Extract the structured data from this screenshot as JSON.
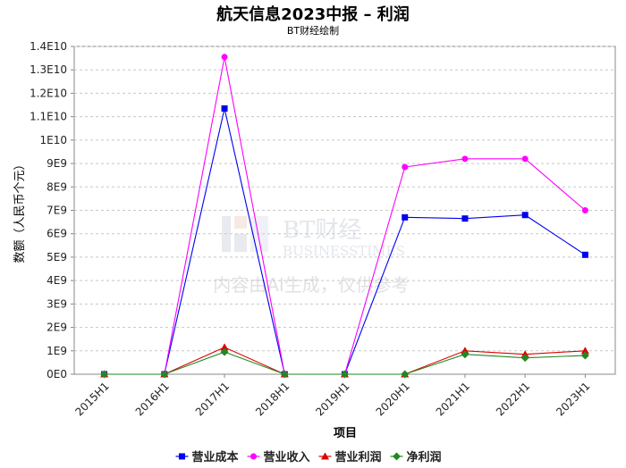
{
  "title": "航天信息2023中报 – 利润",
  "subtitle": "BT财经绘制",
  "watermark": {
    "brand": "BT财经",
    "brand_en": "BUSINESSTIMES",
    "notice": "内容由AI生成，仅供参考"
  },
  "chart_data": {
    "type": "line",
    "xlabel": "项目",
    "ylabel": "数额（人民币个元）",
    "categories": [
      "2015H1",
      "2016H1",
      "2017H1",
      "2018H1",
      "2019H1",
      "2020H1",
      "2021H1",
      "2022H1",
      "2023H1"
    ],
    "ylim": [
      0,
      14000000000
    ],
    "yticks": [
      {
        "value": 0,
        "label": "0E0"
      },
      {
        "value": 1000000000,
        "label": "1E9"
      },
      {
        "value": 2000000000,
        "label": "2E9"
      },
      {
        "value": 3000000000,
        "label": "3E9"
      },
      {
        "value": 4000000000,
        "label": "4E9"
      },
      {
        "value": 5000000000,
        "label": "5E9"
      },
      {
        "value": 6000000000,
        "label": "6E9"
      },
      {
        "value": 7000000000,
        "label": "7E9"
      },
      {
        "value": 8000000000,
        "label": "8E9"
      },
      {
        "value": 9000000000,
        "label": "9E9"
      },
      {
        "value": 10000000000,
        "label": "1E10"
      },
      {
        "value": 11000000000,
        "label": "1.1E10"
      },
      {
        "value": 12000000000,
        "label": "1.2E10"
      },
      {
        "value": 13000000000,
        "label": "1.3E10"
      },
      {
        "value": 14000000000,
        "label": "1.4E10"
      }
    ],
    "grid": true,
    "legend_position": "bottom",
    "series": [
      {
        "name": "营业成本",
        "color": "#0000ee",
        "marker": "square",
        "values": [
          0,
          0,
          11350000000,
          0,
          0,
          6700000000,
          6650000000,
          6800000000,
          5100000000
        ]
      },
      {
        "name": "营业收入",
        "color": "#ff00ff",
        "marker": "circle",
        "values": [
          0,
          0,
          13550000000,
          0,
          0,
          8850000000,
          9200000000,
          9200000000,
          7000000000
        ]
      },
      {
        "name": "营业利润",
        "color": "#dd0000",
        "marker": "triangle",
        "values": [
          0,
          0,
          1150000000,
          0,
          0,
          0,
          1000000000,
          850000000,
          1000000000
        ]
      },
      {
        "name": "净利润",
        "color": "#228822",
        "marker": "diamond",
        "values": [
          0,
          0,
          950000000,
          0,
          0,
          0,
          850000000,
          700000000,
          800000000
        ]
      }
    ]
  }
}
